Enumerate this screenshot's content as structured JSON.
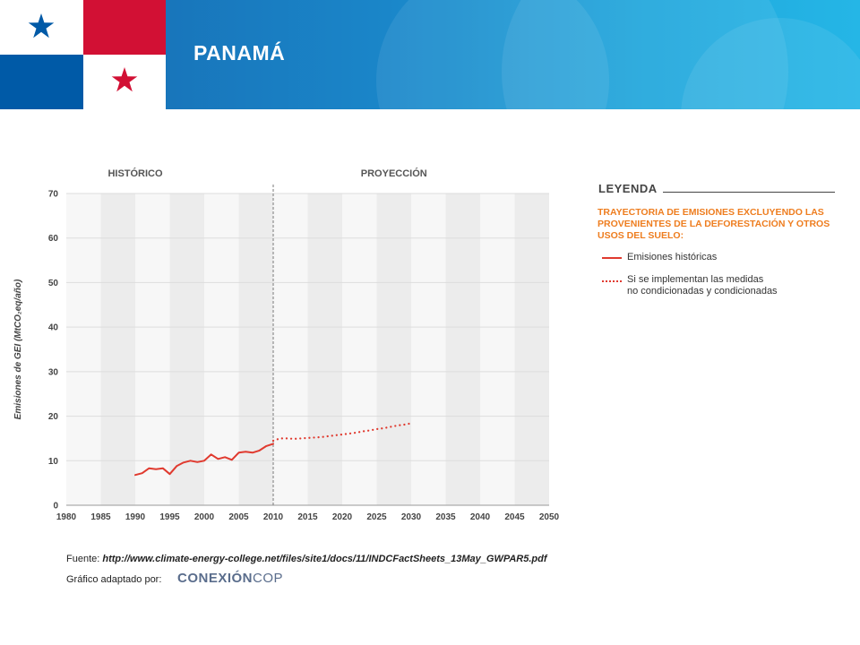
{
  "header": {
    "title": "PANAMÁ"
  },
  "colors": {
    "header_start": "#1769b0",
    "header_end": "#25b6e6",
    "flag_red": "#d21034",
    "flag_blue": "#005aa7",
    "series_red": "#e03a2f",
    "legend_orange": "#ee7d1f"
  },
  "chart_data": {
    "type": "line",
    "section_labels": [
      "HISTÓRICO",
      "PROYECCIÓN"
    ],
    "divider_x": 2010,
    "ylabel": "Emisiones de GEI (MtCO₂eq/año)",
    "xlim": [
      1980,
      2050
    ],
    "ylim": [
      0,
      70
    ],
    "x_ticks": [
      1980,
      1985,
      1990,
      1995,
      2000,
      2005,
      2010,
      2015,
      2020,
      2025,
      2030,
      2035,
      2040,
      2045,
      2050
    ],
    "y_ticks": [
      0,
      10,
      20,
      30,
      40,
      50,
      60,
      70
    ],
    "grid": true,
    "series": [
      {
        "name": "Emisiones históricas",
        "style": "solid",
        "color": "#e03a2f",
        "x": [
          1990,
          1991,
          1992,
          1993,
          1994,
          1995,
          1996,
          1997,
          1998,
          1999,
          2000,
          2001,
          2002,
          2003,
          2004,
          2005,
          2006,
          2007,
          2008,
          2009,
          2010
        ],
        "y": [
          6.8,
          7.2,
          8.3,
          8.1,
          8.3,
          7.0,
          8.8,
          9.6,
          10.0,
          9.7,
          10.0,
          11.4,
          10.4,
          10.8,
          10.2,
          11.8,
          12.0,
          11.8,
          12.3,
          13.3,
          13.8
        ]
      },
      {
        "name": "Si se implementan las medidas no condicionadas y condicionadas",
        "style": "dotted",
        "color": "#e03a2f",
        "x": [
          2010,
          2011,
          2012,
          2013,
          2014,
          2015,
          2016,
          2017,
          2018,
          2019,
          2020,
          2021,
          2022,
          2023,
          2024,
          2025,
          2026,
          2027,
          2028,
          2029,
          2030
        ],
        "y": [
          14.5,
          15.0,
          15.0,
          14.9,
          15.0,
          15.1,
          15.2,
          15.3,
          15.5,
          15.7,
          15.9,
          16.1,
          16.3,
          16.6,
          16.8,
          17.1,
          17.3,
          17.6,
          17.9,
          18.1,
          18.4
        ]
      }
    ]
  },
  "legend": {
    "title": "LEYENDA",
    "subtitle": "TRAYECTORIA DE EMISIONES EXCLUYENDO LAS PROVENIENTES DE LA DEFORESTACIÓN Y OTROS USOS DEL SUELO:",
    "item1": "Emisiones históricas",
    "item2_line1": "Si se implementan las medidas",
    "item2_line2": "no condicionadas y condicionadas"
  },
  "footer": {
    "source_label": "Fuente:",
    "source_url": "http://www.climate-energy-college.net/files/site1/docs/11/INDCFactSheets_13May_GWPAR5.pdf",
    "credit_label": "Gráfico adaptado por:",
    "brand_bold": "CONEXIÓN",
    "brand_light": "COP"
  }
}
